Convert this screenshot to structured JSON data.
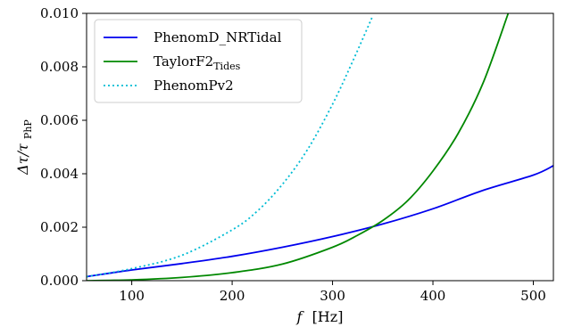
{
  "chart_data": {
    "type": "line",
    "title": "",
    "xlabel": {
      "symbol": "f",
      "unit": "[Hz]"
    },
    "ylabel": {
      "main": "Δτ/τ",
      "subscript": "PhP"
    },
    "xlim": [
      55,
      520
    ],
    "ylim": [
      0,
      0.01
    ],
    "xticks": [
      100,
      200,
      300,
      400,
      500
    ],
    "yticks": [
      0.0,
      0.002,
      0.004,
      0.006,
      0.008,
      0.01
    ],
    "ytick_labels": [
      "0.000",
      "0.002",
      "0.004",
      "0.006",
      "0.008",
      "0.010"
    ],
    "legend_position": "top-left",
    "grid": false,
    "series": [
      {
        "name": "PhenomD_NRTidal",
        "name_main": "PhenomD_NRTidal",
        "name_sub": "",
        "color": "#0000ee",
        "style": "solid",
        "x": [
          55,
          100,
          150,
          200,
          250,
          300,
          350,
          400,
          450,
          500,
          520
        ],
        "y": [
          0.00015,
          0.0004,
          0.00064,
          0.00091,
          0.00125,
          0.00165,
          0.00212,
          0.00269,
          0.00338,
          0.00395,
          0.0043
        ]
      },
      {
        "name": "TaylorF2 Tides",
        "name_main": "TaylorF2",
        "name_sub": "Tides",
        "color": "#008800",
        "style": "solid",
        "x": [
          55,
          100,
          150,
          200,
          250,
          300,
          325,
          350,
          375,
          400,
          425,
          450,
          475
        ],
        "y": [
          0.0,
          3e-05,
          0.00012,
          0.0003,
          0.00062,
          0.00125,
          0.0017,
          0.00225,
          0.003,
          0.0041,
          0.0055,
          0.0074,
          0.01
        ]
      },
      {
        "name": "PhenomPv2",
        "name_main": "PhenomPv2",
        "name_sub": "",
        "color": "#00bcd4",
        "style": "dotted",
        "x": [
          55,
          100,
          150,
          200,
          225,
          250,
          275,
          300,
          320,
          340
        ],
        "y": [
          0.00015,
          0.00045,
          0.00095,
          0.0019,
          0.0026,
          0.0036,
          0.0049,
          0.0066,
          0.0082,
          0.0099
        ]
      }
    ]
  }
}
